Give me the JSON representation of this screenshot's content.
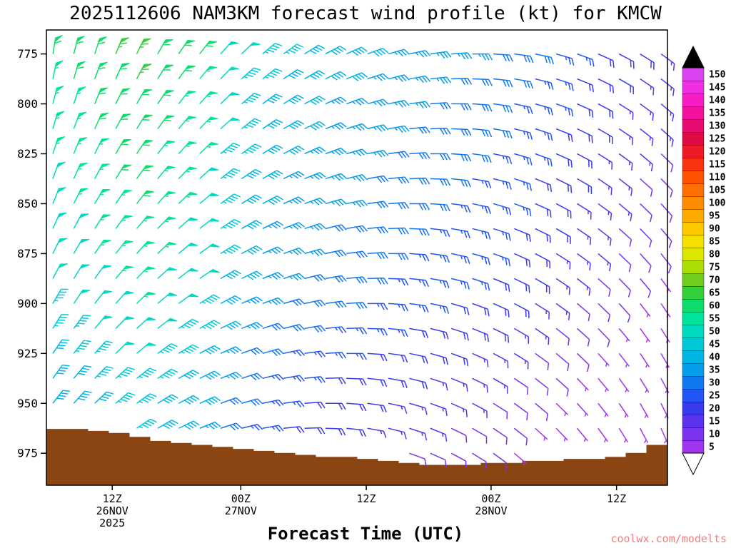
{
  "title": "2025112606 NAM3KM forecast wind profile (kt) for KMCW",
  "xlabel": "Forecast Time (UTC)",
  "watermark": {
    "text": "coolwx.com/modelts",
    "color": "#F08080"
  },
  "chart_data": {
    "type": "scatter",
    "variant": "wind-barb-time-height-profile",
    "model": "NAM3KM",
    "init_cycle": "2025112606",
    "station": "KMCW",
    "units": "kt",
    "ylim": [
      763,
      991
    ],
    "yticks": [
      775,
      800,
      825,
      850,
      875,
      900,
      925,
      950,
      975
    ],
    "xticks": [
      {
        "frac": 0.106,
        "lines": [
          "12Z",
          "26NOV",
          "2025"
        ]
      },
      {
        "frac": 0.313,
        "lines": [
          "00Z",
          "27NOV"
        ]
      },
      {
        "frac": 0.515,
        "lines": [
          "12Z"
        ]
      },
      {
        "frac": 0.716,
        "lines": [
          "00Z",
          "28NOV"
        ]
      },
      {
        "frac": 0.918,
        "lines": [
          "12Z"
        ]
      }
    ],
    "n_cols": 30,
    "pressure_levels": [
      775,
      787.5,
      800,
      812.5,
      825,
      837.5,
      850,
      862.5,
      875,
      887.5,
      900,
      912.5,
      925,
      937.5,
      950,
      962.5,
      975
    ],
    "speed_base_by_col": [
      48,
      50,
      52,
      54,
      55,
      52,
      50,
      48,
      42,
      38,
      35,
      33,
      32,
      30,
      30,
      28,
      27,
      26,
      25,
      24,
      23,
      22,
      20,
      18,
      16,
      14,
      12,
      10,
      8,
      7
    ],
    "speed_row_offsets": [
      10,
      8,
      7,
      6,
      5,
      4,
      3,
      2,
      1,
      0,
      -2,
      -4,
      -6,
      -8,
      -10,
      -12,
      -14
    ],
    "dir_base": 10,
    "dir_col_step": 4,
    "dir_row_step": 2,
    "terrain_pressure_by_col": [
      963,
      963,
      964,
      965,
      967,
      969,
      970,
      971,
      972,
      973,
      974,
      975,
      976,
      977,
      977,
      978,
      979,
      980,
      981,
      981,
      981,
      980,
      980,
      979,
      979,
      978,
      978,
      977,
      975,
      971
    ],
    "terrain_color": "#8B4513",
    "colorbar": {
      "values": [
        5,
        10,
        15,
        20,
        25,
        30,
        35,
        40,
        45,
        50,
        55,
        60,
        65,
        70,
        75,
        80,
        85,
        90,
        95,
        100,
        105,
        110,
        115,
        120,
        125,
        130,
        135,
        140,
        145,
        150
      ],
      "colors": [
        "#A035EE",
        "#7B33EE",
        "#5A33EE",
        "#3A3BEE",
        "#2255F5",
        "#1179F0",
        "#069EE8",
        "#00B5E2",
        "#00C8D8",
        "#00D8C0",
        "#00E39B",
        "#0DDC6A",
        "#35CF3B",
        "#72CC1C",
        "#AADC06",
        "#DDE600",
        "#F5E000",
        "#FFC900",
        "#FFAA00",
        "#FF8C00",
        "#FF6F00",
        "#FF5200",
        "#FB3210",
        "#EE1A25",
        "#DE0A45",
        "#E80C72",
        "#F511A0",
        "#F81CC4",
        "#EE30E2",
        "#D943F0"
      ],
      "over_arrow_color": "#000000",
      "under_arrow_color": "#FFFFFF"
    }
  }
}
